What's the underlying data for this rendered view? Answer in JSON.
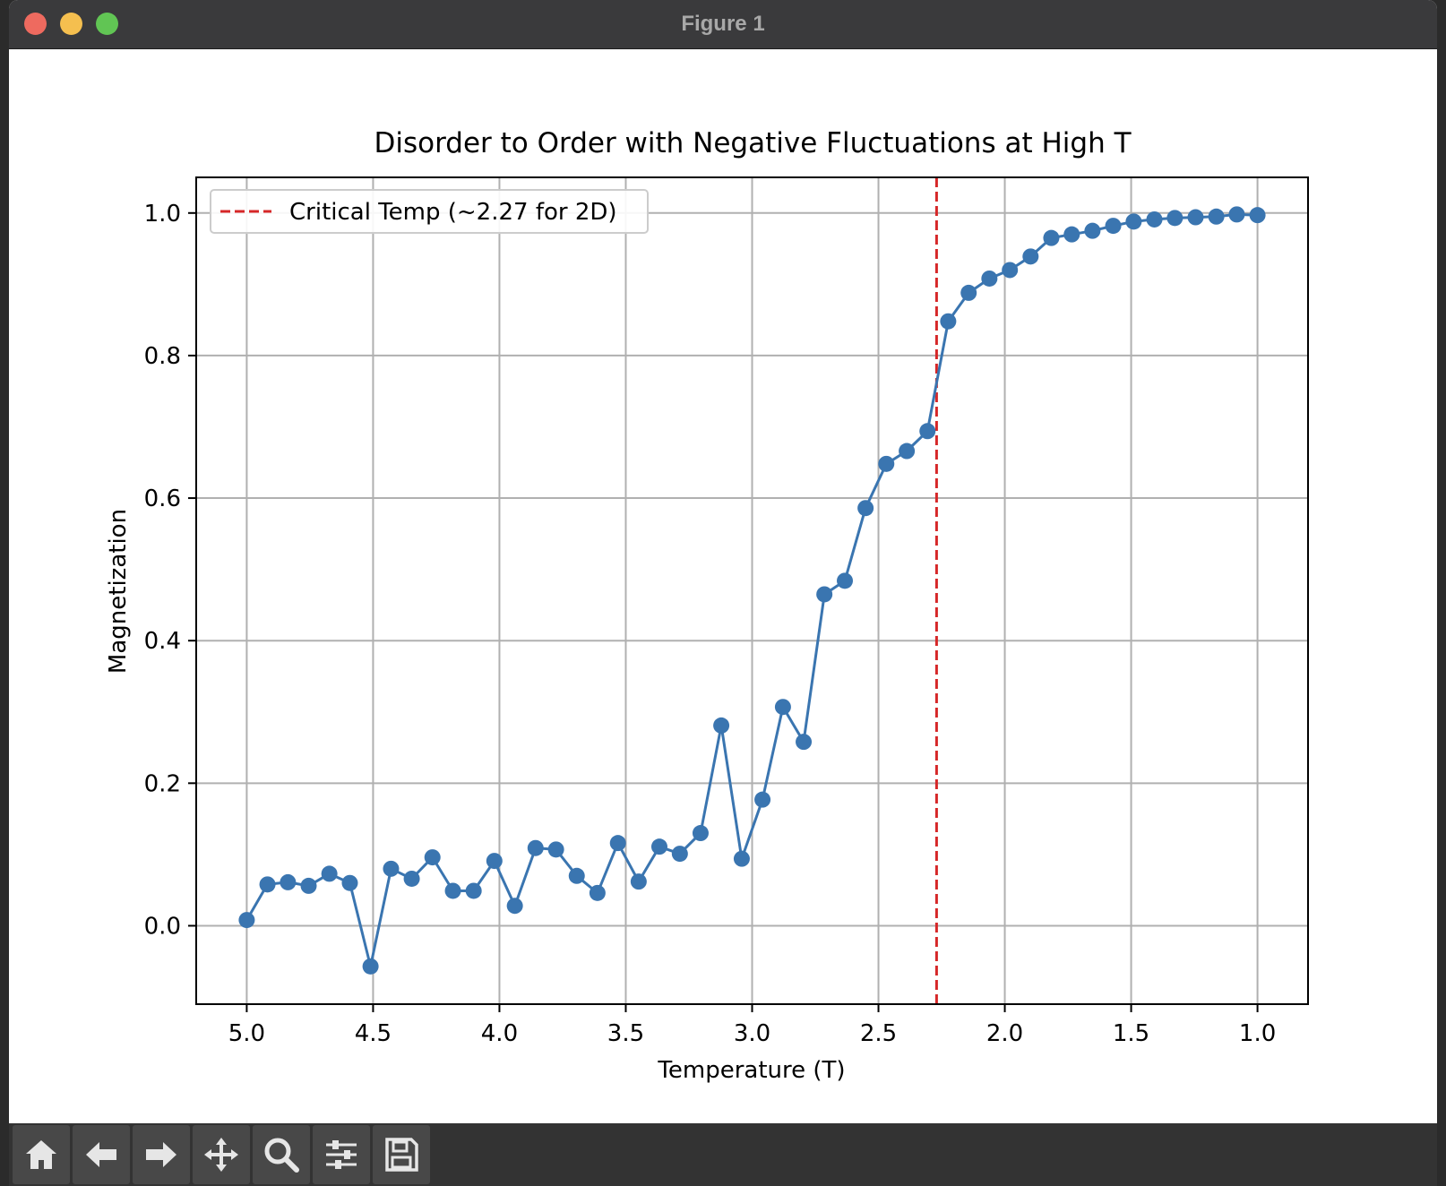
{
  "window": {
    "title": "Figure 1"
  },
  "toolbar": {
    "buttons": [
      {
        "name": "home-icon"
      },
      {
        "name": "back-arrow-icon"
      },
      {
        "name": "forward-arrow-icon"
      },
      {
        "name": "pan-move-icon"
      },
      {
        "name": "zoom-magnifier-icon"
      },
      {
        "name": "configure-subplots-icon"
      },
      {
        "name": "save-floppy-icon"
      }
    ]
  },
  "chart_data": {
    "type": "line",
    "title": "Disorder to Order with Negative Fluctuations at High T",
    "xlabel": "Temperature (T)",
    "ylabel": "Magnetization",
    "xlim": [
      5.2,
      0.8
    ],
    "ylim": [
      -0.11,
      1.05
    ],
    "x_inverted": true,
    "xticks": [
      "5.0",
      "4.5",
      "4.0",
      "3.5",
      "3.0",
      "2.5",
      "2.0",
      "1.5",
      "1.0"
    ],
    "xtick_values": [
      5.0,
      4.5,
      4.0,
      3.5,
      3.0,
      2.5,
      2.0,
      1.5,
      1.0
    ],
    "yticks": [
      "0.0",
      "0.2",
      "0.4",
      "0.6",
      "0.8",
      "1.0"
    ],
    "ytick_values": [
      0.0,
      0.2,
      0.4,
      0.6,
      0.8,
      1.0
    ],
    "grid": true,
    "legend_position": "upper-left",
    "series": [
      {
        "color": "#3a75b0",
        "marker": "circle",
        "x": [
          5.0,
          4.918,
          4.837,
          4.755,
          4.673,
          4.592,
          4.51,
          4.429,
          4.347,
          4.265,
          4.184,
          4.102,
          4.02,
          3.939,
          3.857,
          3.776,
          3.694,
          3.612,
          3.531,
          3.449,
          3.367,
          3.286,
          3.204,
          3.122,
          3.041,
          2.959,
          2.878,
          2.796,
          2.714,
          2.633,
          2.551,
          2.469,
          2.388,
          2.306,
          2.224,
          2.143,
          2.061,
          1.98,
          1.898,
          1.816,
          1.735,
          1.653,
          1.571,
          1.49,
          1.408,
          1.327,
          1.245,
          1.163,
          1.082,
          1.0
        ],
        "y": [
          0.008,
          0.058,
          0.061,
          0.056,
          0.073,
          0.06,
          -0.057,
          0.08,
          0.066,
          0.096,
          0.049,
          0.049,
          0.091,
          0.028,
          0.109,
          0.107,
          0.07,
          0.046,
          0.116,
          0.062,
          0.111,
          0.101,
          0.13,
          0.281,
          0.094,
          0.177,
          0.307,
          0.258,
          0.465,
          0.484,
          0.586,
          0.648,
          0.666,
          0.694,
          0.848,
          0.888,
          0.908,
          0.92,
          0.939,
          0.965,
          0.97,
          0.975,
          0.982,
          0.988,
          0.991,
          0.993,
          0.994,
          0.995,
          0.998,
          0.997
        ]
      }
    ],
    "reference_lines": [
      {
        "orientation": "vertical",
        "x": 2.27,
        "color": "#d62728",
        "style": "dashed",
        "label": "Critical Temp (~2.27 for 2D)"
      }
    ]
  }
}
